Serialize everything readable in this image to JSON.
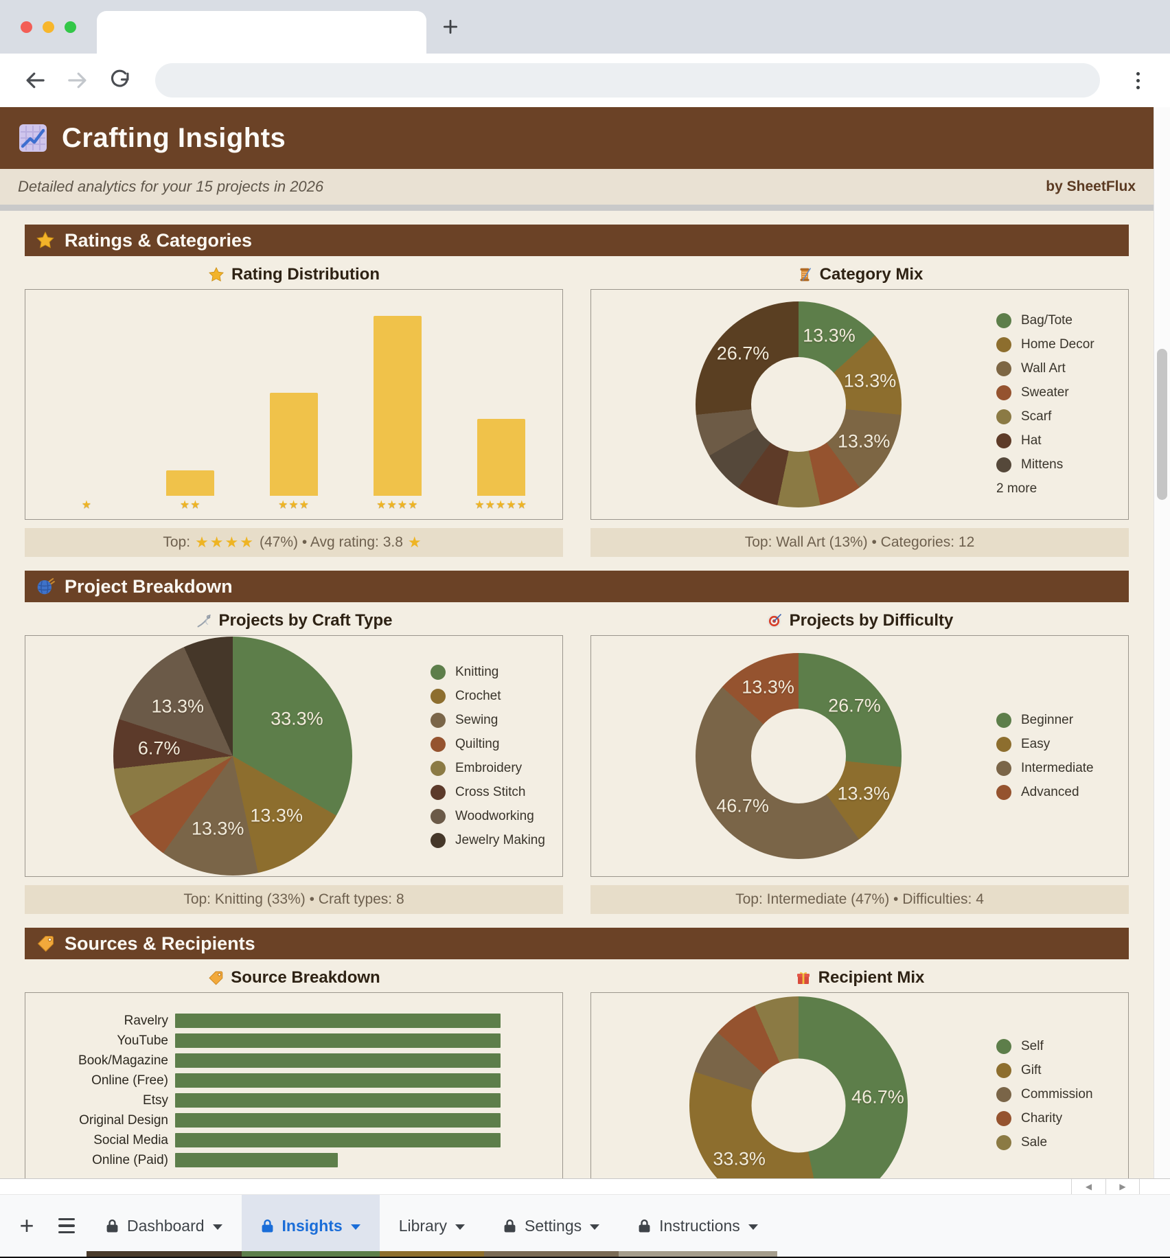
{
  "header": {
    "title": "Crafting Insights",
    "subtitle": "Detailed analytics for your 15 projects in 2026",
    "byline": "by SheetFlux",
    "icon": "chart-increasing-icon",
    "accent_color": "#6b4226"
  },
  "sections": [
    {
      "title": "Ratings & Categories",
      "icon": "star-icon",
      "left": {
        "title": "Rating Distribution",
        "icon": "star-icon",
        "footer": [
          {
            "text": "Top: "
          },
          {
            "stars": 4
          },
          {
            "text": " (47%) • Avg rating: 3.8 "
          },
          {
            "stars": 1
          }
        ]
      },
      "right": {
        "title": "Category Mix",
        "icon": "thread-spool-icon",
        "footer": [
          {
            "text": "Top: Wall Art (13%) • Categories: 12"
          }
        ]
      }
    },
    {
      "title": "Project Breakdown",
      "icon": "yarn-icon",
      "left": {
        "title": "Projects by Craft Type",
        "icon": "sewing-needle-icon",
        "footer": [
          {
            "text": "Top: Knitting (33%) • Craft types: 8"
          }
        ]
      },
      "right": {
        "title": "Projects by Difficulty",
        "icon": "target-icon",
        "footer": [
          {
            "text": "Top: Intermediate (47%) • Difficulties: 4"
          }
        ]
      }
    },
    {
      "title": "Sources & Recipients",
      "icon": "tag-icon",
      "left": {
        "title": "Source Breakdown",
        "icon": "tag-icon",
        "footer": null
      },
      "right": {
        "title": "Recipient Mix",
        "icon": "gift-icon",
        "footer": null
      }
    }
  ],
  "chart_data": [
    {
      "type": "bar",
      "title": "Rating Distribution",
      "categories": [
        "1 star",
        "2 stars",
        "3 stars",
        "4 stars",
        "5 stars"
      ],
      "star_counts": [
        1,
        2,
        3,
        4,
        5
      ],
      "values": [
        0,
        1,
        4,
        7,
        3
      ],
      "ylim": [
        0,
        7
      ],
      "bar_color": "#f0c24a",
      "grid": false,
      "legend_position": "none"
    },
    {
      "type": "donut",
      "title": "Category Mix",
      "size": 300,
      "hole": 0.46,
      "slices": [
        {
          "value": 13.3,
          "pct_label": "13.3%",
          "color": "#5d7e4a",
          "show": true
        },
        {
          "value": 13.3,
          "pct_label": "13.3%",
          "color": "#8d6e2e",
          "show": true
        },
        {
          "value": 13.3,
          "pct_label": "13.3%",
          "color": "#7d6644",
          "show": true
        },
        {
          "value": 6.7,
          "pct_label": "6.7%",
          "color": "#95532f",
          "show": false
        },
        {
          "value": 6.7,
          "pct_label": "6.7%",
          "color": "#8b7a44",
          "show": false
        },
        {
          "value": 6.7,
          "pct_label": "6.7%",
          "color": "#5e3b28",
          "show": false
        },
        {
          "value": 6.7,
          "pct_label": "6.7%",
          "color": "#55483a",
          "show": false
        },
        {
          "value": 6.7,
          "pct_label": "6.7%",
          "color": "#6d5b46",
          "show": false
        },
        {
          "value": 26.7,
          "pct_label": "26.7%",
          "color": "#5a3f22",
          "show": true
        }
      ],
      "legend": [
        {
          "label": "Bag/Tote",
          "color": "#5d7e4a"
        },
        {
          "label": "Home Decor",
          "color": "#8d6e2e"
        },
        {
          "label": "Wall Art",
          "color": "#7d6644"
        },
        {
          "label": "Sweater",
          "color": "#95532f"
        },
        {
          "label": "Scarf",
          "color": "#8b7a44"
        },
        {
          "label": "Hat",
          "color": "#5e3b28"
        },
        {
          "label": "Mittens",
          "color": "#55483a"
        }
      ],
      "legend_extra": "2 more",
      "legend_position": "right"
    },
    {
      "type": "pie",
      "title": "Projects by Craft Type",
      "size": 348,
      "slices": [
        {
          "label": "Knitting",
          "value": 33.3,
          "pct_label": "33.3%",
          "color": "#5d7e4a",
          "show": true
        },
        {
          "label": "Crochet",
          "value": 13.3,
          "pct_label": "13.3%",
          "color": "#8d6e2e",
          "show": true
        },
        {
          "label": "Sewing",
          "value": 13.3,
          "pct_label": "13.3%",
          "color": "#7a6548",
          "show": true
        },
        {
          "label": "Quilting",
          "value": 6.7,
          "pct_label": "6.7%",
          "color": "#95532f",
          "show": false
        },
        {
          "label": "Embroidery",
          "value": 6.7,
          "pct_label": "6.7%",
          "color": "#8b7a44",
          "show": false
        },
        {
          "label": "Cross Stitch",
          "value": 6.7,
          "pct_label": "6.7%",
          "color": "#5c3a2a",
          "show": true
        },
        {
          "label": "Woodworking",
          "value": 13.3,
          "pct_label": "13.3%",
          "color": "#6b5a48",
          "show": true
        },
        {
          "label": "Jewelry Making",
          "value": 6.7,
          "pct_label": "6.7%",
          "color": "#453729",
          "show": false
        }
      ],
      "legend": [
        {
          "label": "Knitting",
          "color": "#5d7e4a"
        },
        {
          "label": "Crochet",
          "color": "#8d6e2e"
        },
        {
          "label": "Sewing",
          "color": "#7a6548"
        },
        {
          "label": "Quilting",
          "color": "#95532f"
        },
        {
          "label": "Embroidery",
          "color": "#8b7a44"
        },
        {
          "label": "Cross Stitch",
          "color": "#5c3a2a"
        },
        {
          "label": "Woodworking",
          "color": "#6b5a48"
        },
        {
          "label": "Jewelry Making",
          "color": "#453729"
        }
      ],
      "legend_position": "right"
    },
    {
      "type": "donut",
      "title": "Projects by Difficulty",
      "size": 300,
      "hole": 0.46,
      "slices": [
        {
          "label": "Beginner",
          "value": 26.7,
          "pct_label": "26.7%",
          "color": "#5d7e4a",
          "show": true
        },
        {
          "label": "Easy",
          "value": 13.3,
          "pct_label": "13.3%",
          "color": "#8d6e2e",
          "show": true
        },
        {
          "label": "Intermediate",
          "value": 46.7,
          "pct_label": "46.7%",
          "color": "#7a6548",
          "show": true
        },
        {
          "label": "Advanced",
          "value": 13.3,
          "pct_label": "13.3%",
          "color": "#95532f",
          "show": true
        }
      ],
      "legend": [
        {
          "label": "Beginner",
          "color": "#5d7e4a"
        },
        {
          "label": "Easy",
          "color": "#8d6e2e"
        },
        {
          "label": "Intermediate",
          "color": "#7a6548"
        },
        {
          "label": "Advanced",
          "color": "#95532f"
        }
      ],
      "legend_position": "right"
    },
    {
      "type": "hbar",
      "title": "Source Breakdown",
      "categories": [
        "Ravelry",
        "YouTube",
        "Book/Magazine",
        "Online (Free)",
        "Etsy",
        "Original Design",
        "Social Media",
        "Online (Paid)"
      ],
      "values": [
        2,
        2,
        2,
        2,
        2,
        2,
        2,
        1
      ],
      "xlim": [
        0,
        2.27
      ],
      "bar_color": "#5d7e4a",
      "grid": false,
      "legend_position": "none"
    },
    {
      "type": "donut",
      "title": "Recipient Mix",
      "size": 318,
      "hole": 0.43,
      "slices": [
        {
          "label": "Self",
          "value": 46.7,
          "pct_label": "46.7%",
          "color": "#5d7e4a",
          "show": true
        },
        {
          "label": "Gift",
          "value": 33.3,
          "pct_label": "33.3%",
          "color": "#8d6e2e",
          "show": true
        },
        {
          "label": "Commission",
          "value": 6.7,
          "pct_label": "6.7%",
          "color": "#7a6548",
          "show": false
        },
        {
          "label": "Charity",
          "value": 6.7,
          "pct_label": "6.7%",
          "color": "#95532f",
          "show": false
        },
        {
          "label": "Sale",
          "value": 6.7,
          "pct_label": "6.7%",
          "color": "#8b7a44",
          "show": false
        }
      ],
      "legend": [
        {
          "label": "Self",
          "color": "#5d7e4a"
        },
        {
          "label": "Gift",
          "color": "#8d6e2e"
        },
        {
          "label": "Commission",
          "color": "#7a6548"
        },
        {
          "label": "Charity",
          "color": "#95532f"
        },
        {
          "label": "Sale",
          "color": "#8b7a44"
        }
      ],
      "legend_position": "right"
    }
  ],
  "sheet_tabs": {
    "tabs": [
      {
        "label": "Dashboard",
        "locked": true,
        "active": false,
        "stripe": "#4a3b2b"
      },
      {
        "label": "Insights",
        "locked": true,
        "active": true,
        "stripe": "#5d7e4a"
      },
      {
        "label": "Library",
        "locked": false,
        "active": false,
        "stripe": "#8d6e2e"
      },
      {
        "label": "Settings",
        "locked": true,
        "active": false,
        "stripe": "#7a6a55"
      },
      {
        "label": "Instructions",
        "locked": true,
        "active": false,
        "stripe": "#a59d8c"
      }
    ]
  }
}
